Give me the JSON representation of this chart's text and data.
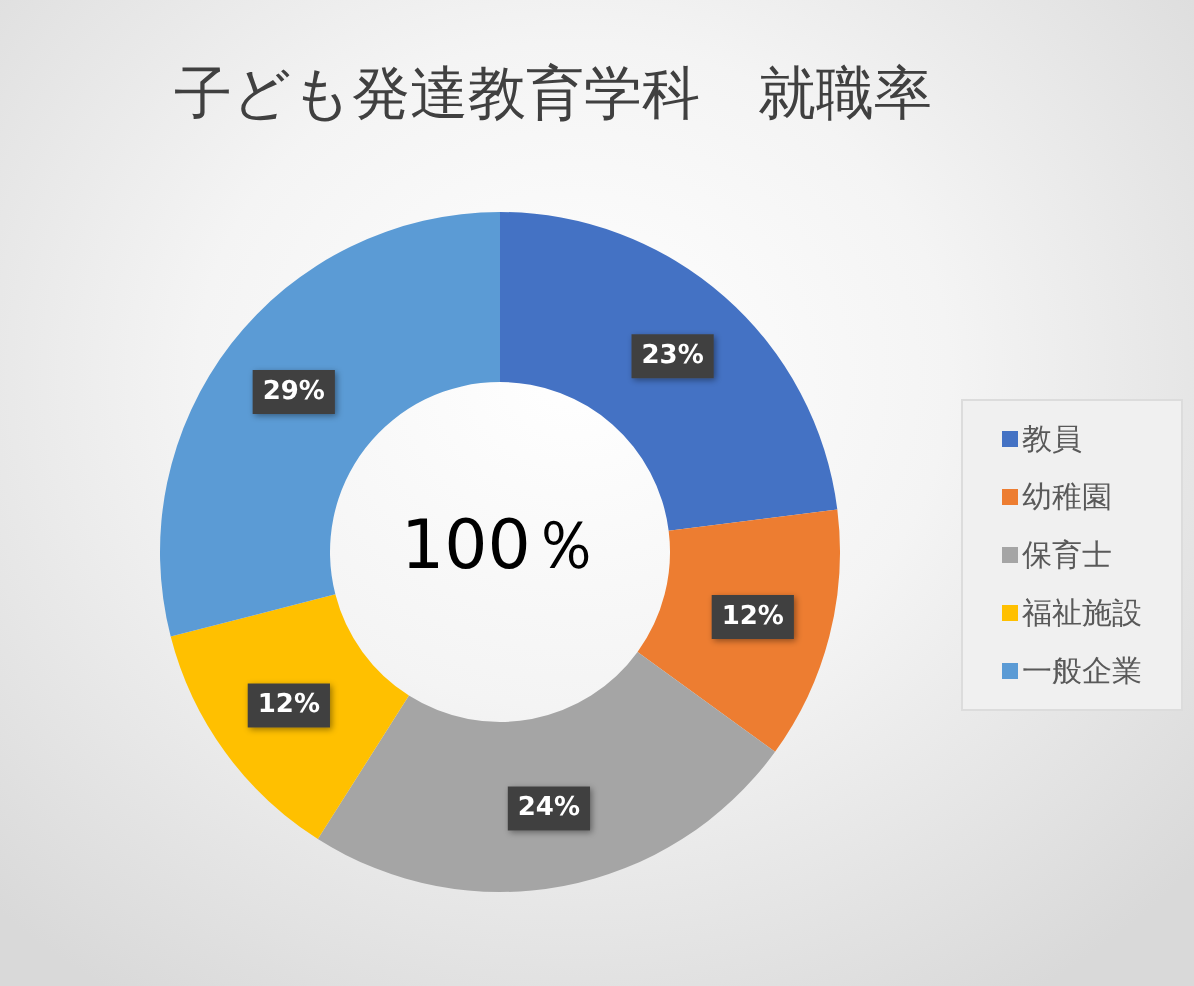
{
  "chart_data": {
    "type": "donut",
    "title": "子ども発達教育学科　就職率",
    "categories": [
      "教員",
      "幼稚園",
      "保育士",
      "福祉施設",
      "一般企業"
    ],
    "values": [
      23,
      12,
      24,
      12,
      29
    ],
    "colors": [
      "#4472c4",
      "#ed7d31",
      "#a5a5a5",
      "#ffc000",
      "#5b9bd5"
    ],
    "value_labels": [
      "23%",
      "12%",
      "24%",
      "12%",
      "29%"
    ],
    "legend": "right",
    "annotations": [
      "100％"
    ]
  }
}
